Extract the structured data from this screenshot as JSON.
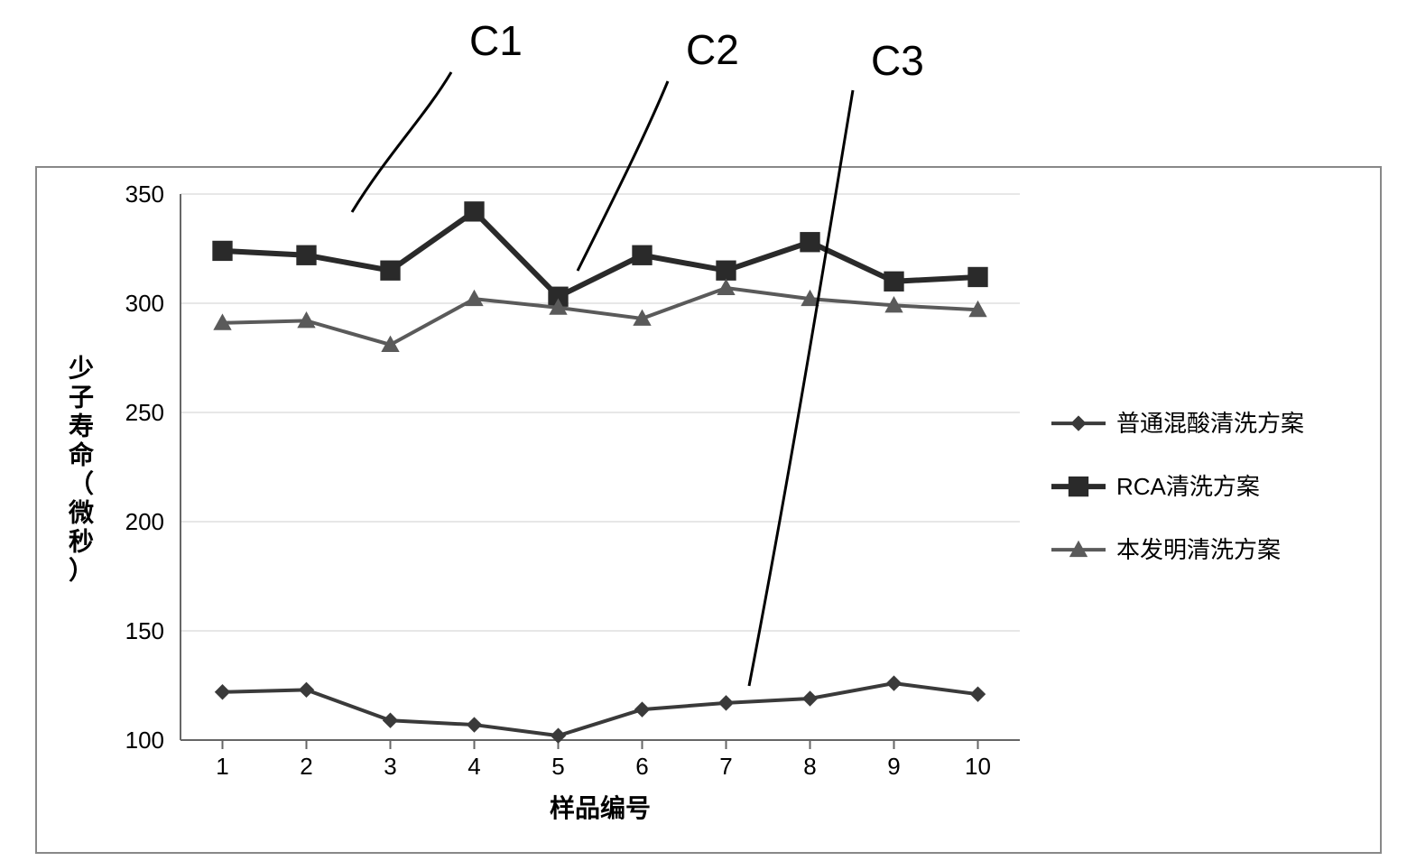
{
  "annotations": {
    "c1": {
      "text": "C1",
      "fontsize": 46,
      "color": "#000000"
    },
    "c2": {
      "text": "C2",
      "fontsize": 46,
      "color": "#000000"
    },
    "c3": {
      "text": "C3",
      "fontsize": 46,
      "color": "#000000"
    }
  },
  "chart": {
    "type": "line",
    "background_color": "#ffffff",
    "border_color": "#888888",
    "border_width": 2,
    "grid_color": "#cfcfcf",
    "grid_width": 1,
    "axis_color": "#666666",
    "x": {
      "label": "样品编号",
      "label_fontsize": 28,
      "label_color": "#000000",
      "categories": [
        "1",
        "2",
        "3",
        "4",
        "5",
        "6",
        "7",
        "8",
        "9",
        "10"
      ],
      "tick_fontsize": 26,
      "tick_color": "#000000"
    },
    "y": {
      "label": "少子寿命（微秒）",
      "label_fontsize": 28,
      "label_color": "#000000",
      "min": 100,
      "max": 350,
      "tick_step": 50,
      "tick_fontsize": 26,
      "tick_color": "#000000"
    },
    "series": [
      {
        "key": "c3",
        "name": "普通混酸清洗方案",
        "color": "#3a3a3a",
        "line_width": 4,
        "marker": "diamond",
        "marker_size": 12,
        "values": [
          122,
          123,
          109,
          107,
          102,
          114,
          117,
          119,
          126,
          121
        ]
      },
      {
        "key": "c1",
        "name": "RCA清洗方案",
        "color": "#2a2a2a",
        "line_width": 6,
        "marker": "square",
        "marker_size": 16,
        "values": [
          324,
          322,
          315,
          342,
          303,
          322,
          315,
          328,
          310,
          312
        ]
      },
      {
        "key": "c2",
        "name": "本发明清洗方案",
        "color": "#5a5a5a",
        "line_width": 4,
        "marker": "triangle",
        "marker_size": 14,
        "values": [
          291,
          292,
          281,
          302,
          298,
          293,
          307,
          302,
          299,
          297
        ]
      }
    ],
    "legend": {
      "fontsize": 26,
      "color": "#000000",
      "marker_line_length": 60
    }
  }
}
